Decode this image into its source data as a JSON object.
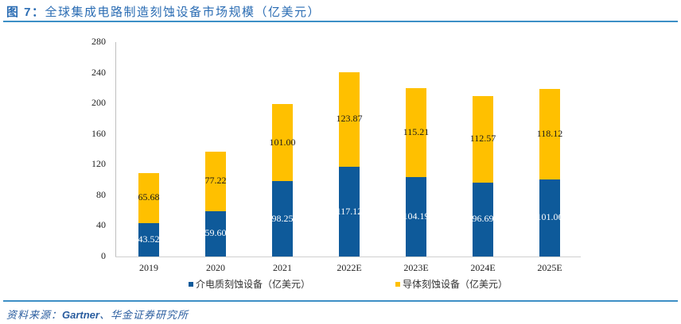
{
  "header": {
    "figure_label": "图 7：",
    "title": "全球集成电路制造刻蚀设备市场规模（亿美元）"
  },
  "footer": {
    "source_prefix": "资料来源：",
    "source_brand": "Gartner",
    "source_suffix": "、华金证券研究所"
  },
  "colors": {
    "accent": "#3d8fc6",
    "series_dielectric": "#0e5a9a",
    "series_conductor": "#ffc000"
  },
  "chart_data": {
    "type": "bar",
    "stacked": true,
    "title": "全球集成电路制造刻蚀设备市场规模（亿美元）",
    "xlabel": "",
    "ylabel": "",
    "ylim": [
      0,
      280
    ],
    "yticks": [
      "0",
      "40",
      "80",
      "120",
      "160",
      "200",
      "240",
      "280"
    ],
    "grid": false,
    "legend_position": "bottom",
    "categories": [
      "2019",
      "2020",
      "2021",
      "2022E",
      "2023E",
      "2024E",
      "2025E"
    ],
    "series": [
      {
        "name": "介电质刻蚀设备（亿美元）",
        "color": "#0e5a9a",
        "values": [
          43.52,
          59.6,
          98.25,
          117.12,
          104.19,
          96.69,
          101.06
        ],
        "labels": [
          "43.52",
          "59.60",
          "98.25",
          "117.12",
          "104.19",
          "96.69",
          "101.06"
        ]
      },
      {
        "name": "导体刻蚀设备（亿美元）",
        "color": "#ffc000",
        "values": [
          65.68,
          77.22,
          101.0,
          123.87,
          115.21,
          112.57,
          118.12
        ],
        "labels": [
          "65.68",
          "77.22",
          "101.00",
          "123.87",
          "115.21",
          "112.57",
          "118.12"
        ]
      }
    ]
  }
}
